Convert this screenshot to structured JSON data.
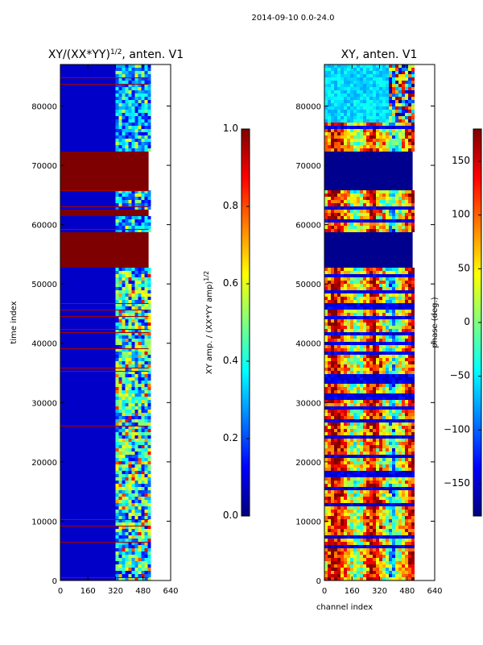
{
  "figure_title": "2014-09-10 0.0-24.0",
  "chart_data": [
    {
      "type": "heatmap",
      "title_main": "XY/(XX*YY)",
      "title_exp": "1/2",
      "title_suffix": ", anten. V1",
      "xlabel": "",
      "ylabel": "time index",
      "xlim": [
        0,
        640
      ],
      "ylim": [
        0,
        87000
      ],
      "xticks": [
        0,
        160,
        320,
        480,
        640
      ],
      "yticks": [
        0,
        10000,
        20000,
        30000,
        40000,
        50000,
        60000,
        70000,
        80000
      ],
      "data_x_extent": [
        0,
        512
      ],
      "colorbar": {
        "label_main": "XY amp. / (XX*YY amp)",
        "label_exp": "1/2",
        "range": [
          0.0,
          1.0
        ],
        "ticks": [
          "0.0",
          "0.2",
          "0.4",
          "0.6",
          "0.8",
          "1.0"
        ]
      },
      "saturated_bands": [
        [
          52800,
          58600
        ],
        [
          61500,
          62800
        ],
        [
          66000,
          72300
        ]
      ],
      "active_channel_range": [
        320,
        480
      ]
    },
    {
      "type": "heatmap",
      "title_main": "XY, anten. V1",
      "xlabel": "channel index",
      "ylabel": "",
      "xlim": [
        0,
        640
      ],
      "ylim": [
        0,
        87000
      ],
      "xticks": [
        0,
        160,
        320,
        480,
        640
      ],
      "yticks": [
        0,
        10000,
        20000,
        30000,
        40000,
        50000,
        60000,
        70000,
        80000
      ],
      "data_x_extent": [
        0,
        512
      ],
      "colorbar": {
        "label_main": "phase (deg.)",
        "range": [
          -180,
          180
        ],
        "ticks": [
          "−150",
          "−100",
          "−50",
          "0",
          "50",
          "100",
          "150"
        ]
      },
      "uniform_bands": [
        [
          52800,
          58600
        ],
        [
          65800,
          72300
        ]
      ],
      "noisy_band": [
        77000,
        87000
      ]
    }
  ],
  "colors": {
    "jet_stops": [
      "#00007f",
      "#0000ff",
      "#007fff",
      "#00ffff",
      "#7fff7f",
      "#ffff00",
      "#ff7f00",
      "#ff0000",
      "#7f0000"
    ]
  }
}
